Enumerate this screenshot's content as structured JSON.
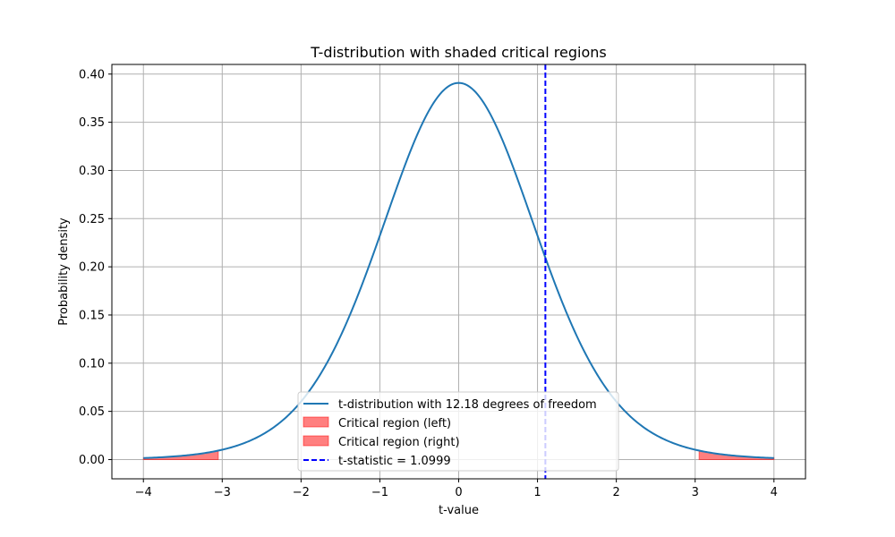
{
  "chart_data": {
    "type": "line",
    "title": "T-distribution with shaded critical regions",
    "xlabel": "t-value",
    "ylabel": "Probability density",
    "xlim": [
      -4.4,
      4.4
    ],
    "ylim": [
      -0.02,
      0.41
    ],
    "grid": true,
    "legend_position": "lower center",
    "x_ticks": [
      -4,
      -3,
      -2,
      -1,
      0,
      1,
      2,
      3,
      4
    ],
    "x_tick_labels": [
      "−4",
      "−3",
      "−2",
      "−1",
      "0",
      "1",
      "2",
      "3",
      "4"
    ],
    "y_ticks": [
      0.0,
      0.05,
      0.1,
      0.15,
      0.2,
      0.25,
      0.3,
      0.35,
      0.4
    ],
    "y_tick_labels": [
      "0.00",
      "0.05",
      "0.10",
      "0.15",
      "0.20",
      "0.25",
      "0.30",
      "0.35",
      "0.40"
    ],
    "degrees_of_freedom": 12.18,
    "x_range": [
      -4,
      4
    ],
    "critical_value": 3.05,
    "t_statistic": 1.0999,
    "series": [
      {
        "name": "t-distribution with 12.18 degrees of freedom",
        "kind": "line",
        "color": "#1f77b4"
      },
      {
        "name": "Critical region (left)",
        "kind": "fill",
        "range": [
          -4,
          -3.05
        ],
        "color": "#ff0000",
        "alpha": 0.5
      },
      {
        "name": "Critical region (right)",
        "kind": "fill",
        "range": [
          3.05,
          4
        ],
        "color": "#ff0000",
        "alpha": 0.5
      },
      {
        "name": "t-statistic = 1.0999",
        "kind": "vline",
        "x": 1.0999,
        "color": "#0000ff",
        "style": "dashed"
      }
    ]
  }
}
